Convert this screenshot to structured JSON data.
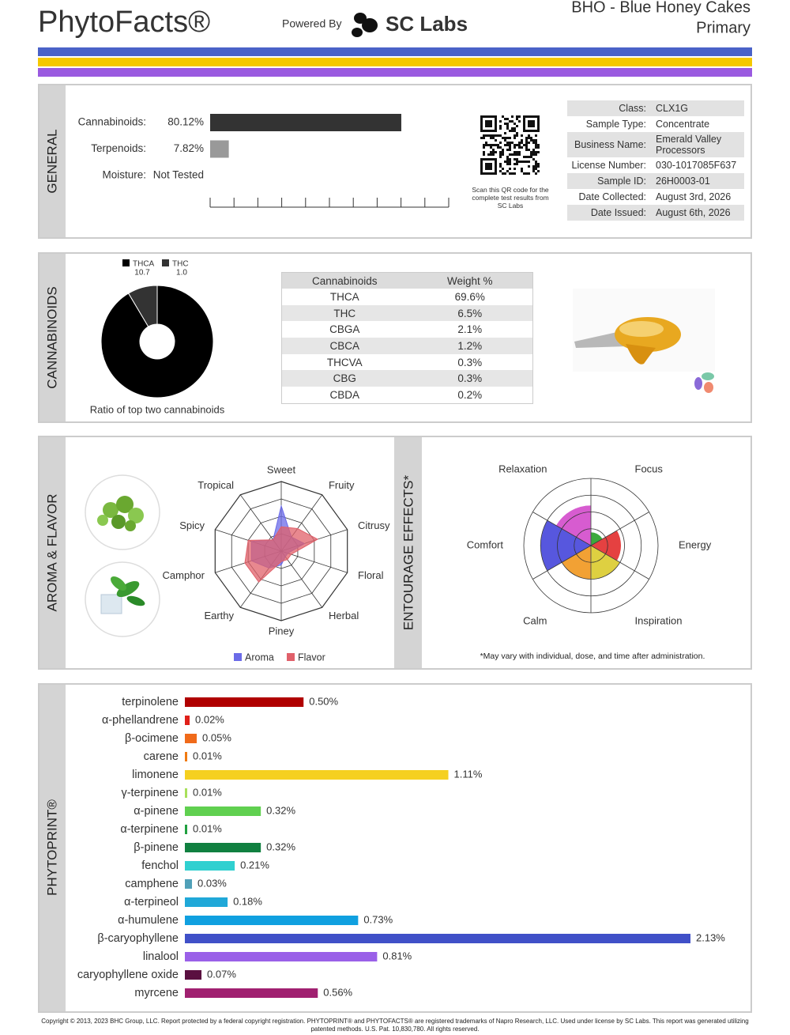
{
  "header": {
    "logo": "PhytoFacts®",
    "powered_by": "Powered By",
    "lab": "SC Labs",
    "product": "BHO - Blue Honey Cakes",
    "grade": "Primary"
  },
  "general": {
    "title": "GENERAL",
    "rows": [
      {
        "label": "Cannabinoids:",
        "value": 80.12,
        "value_label": "80.12%",
        "color": "#333333"
      },
      {
        "label": "Terpenoids:",
        "value": 7.82,
        "value_label": "7.82%",
        "color": "#999999"
      },
      {
        "label": "Moisture:",
        "value_label": "Not Tested"
      }
    ],
    "qr_note": "Scan this QR code for the complete test results from SC Labs",
    "info": [
      [
        "Class:",
        "CLX1G"
      ],
      [
        "Sample Type:",
        "Concentrate"
      ],
      [
        "Business Name:",
        "Emerald Valley Processors"
      ],
      [
        "License Number:",
        "030-1017085F637"
      ],
      [
        "Sample ID:",
        "26H0003-01"
      ],
      [
        "Date Collected:",
        "August 3rd, 2026"
      ],
      [
        "Date Issued:",
        "August 6th, 2026"
      ]
    ]
  },
  "cannabinoids": {
    "title": "CANNABINOIDS",
    "pie": {
      "type": "pie",
      "series": [
        {
          "name": "THCA",
          "value": 10.7,
          "value_label": "10.7",
          "color": "#000000"
        },
        {
          "name": "THC",
          "value": 1.0,
          "value_label": "1.0",
          "color": "#333333"
        }
      ],
      "caption": "Ratio of top two cannabinoids"
    },
    "table": {
      "columns": [
        "Cannabinoids",
        "Weight %"
      ],
      "rows": [
        {
          "name": "THCA",
          "value": 69.6,
          "value_label": "69.6%"
        },
        {
          "name": "THC",
          "value": 6.5,
          "value_label": "6.5%"
        },
        {
          "name": "CBGA",
          "value": 2.1,
          "value_label": "2.1%"
        },
        {
          "name": "CBCA",
          "value": 1.2,
          "value_label": "1.2%"
        },
        {
          "name": "THCVA",
          "value": 0.3,
          "value_label": "0.3%"
        },
        {
          "name": "CBG",
          "value": 0.3,
          "value_label": "0.3%"
        },
        {
          "name": "CBDA",
          "value": 0.2,
          "value_label": "0.2%"
        }
      ]
    }
  },
  "aroma": {
    "title": "AROMA & FLAVOR",
    "type": "radar",
    "axes": [
      "Sweet",
      "Fruity",
      "Citrusy",
      "Floral",
      "Herbal",
      "Piney",
      "Earthy",
      "Camphor",
      "Spicy",
      "Tropical"
    ],
    "rlim": [
      0,
      1
    ],
    "series": [
      {
        "name": "Aroma",
        "color": "#6b6be8",
        "values": [
          0.65,
          0.25,
          0.35,
          0.1,
          0.1,
          0.2,
          0.3,
          0.45,
          0.45,
          0.2
        ]
      },
      {
        "name": "Flavor",
        "color": "#e0606a",
        "values": [
          0.35,
          0.4,
          0.55,
          0.15,
          0.15,
          0.15,
          0.55,
          0.55,
          0.5,
          0.2
        ]
      }
    ]
  },
  "entourage": {
    "title": "ENTOURAGE EFFECTS*",
    "type": "polar-area",
    "rlim": [
      0,
      1
    ],
    "categories": [
      "Focus",
      "Energy",
      "Inspiration",
      "Calm",
      "Comfort",
      "Relaxation"
    ],
    "colors": [
      "#1a9a1a",
      "#e02020",
      "#d8c820",
      "#f09010",
      "#3a3ad8",
      "#d040c8"
    ],
    "values": [
      0.2,
      0.45,
      0.5,
      0.5,
      0.75,
      0.6
    ],
    "note": "*May vary with individual, dose, and time after administration."
  },
  "phytoprint": {
    "title": "PHYTOPRINT®",
    "terpenes": [
      {
        "name": "terpinolene",
        "color": "#b00000",
        "text_color": "#b00000",
        "value": 0.5,
        "value_label": "0.50%"
      },
      {
        "name": "α-phellandrene",
        "color": "#e0201a",
        "text_color": "#d01a14",
        "value": 0.02,
        "value_label": "0.02%"
      },
      {
        "name": "β-ocimene",
        "color": "#f06a1a",
        "text_color": "#e05a10",
        "value": 0.05,
        "value_label": "0.05%"
      },
      {
        "name": "carene",
        "color": "#f07a10",
        "text_color": "#e06a00",
        "value": 0.01,
        "value_label": "0.01%"
      },
      {
        "name": "limonene",
        "color": "#f5d020",
        "text_color": "#8a7000",
        "value": 1.11,
        "value_label": "1.11%"
      },
      {
        "name": "γ-terpinene",
        "color": "#a8e05a",
        "text_color": "#5a8a20",
        "value": 0.01,
        "value_label": "0.01%"
      },
      {
        "name": "α-pinene",
        "color": "#60d050",
        "text_color": "#30a030",
        "value": 0.32,
        "value_label": "0.32%"
      },
      {
        "name": "α-terpinene",
        "color": "#20a040",
        "text_color": "#1a8a30",
        "value": 0.01,
        "value_label": "0.01%"
      },
      {
        "name": "β-pinene",
        "color": "#108040",
        "text_color": "#108040",
        "value": 0.32,
        "value_label": "0.32%"
      },
      {
        "name": "fenchol",
        "color": "#30d0d0",
        "text_color": "#209898",
        "value": 0.21,
        "value_label": "0.21%"
      },
      {
        "name": "camphene",
        "color": "#50a0b8",
        "text_color": "#3a8aa0",
        "value": 0.03,
        "value_label": "0.03%"
      },
      {
        "name": "α-terpineol",
        "color": "#20a8d8",
        "text_color": "#1890c0",
        "value": 0.18,
        "value_label": "0.18%"
      },
      {
        "name": "α-humulene",
        "color": "#10a0e0",
        "text_color": "#1088c8",
        "value": 0.73,
        "value_label": "0.73%"
      },
      {
        "name": "β-caryophyllene",
        "color": "#4050c8",
        "text_color": "#4050c8",
        "value": 2.13,
        "value_label": "2.13%"
      },
      {
        "name": "linalool",
        "color": "#9a60e8",
        "text_color": "#8a50d8",
        "value": 0.81,
        "value_label": "0.81%"
      },
      {
        "name": "caryophyllene oxide",
        "color": "#5a1040",
        "text_color": "#5a1040",
        "value": 0.07,
        "value_label": "0.07%"
      },
      {
        "name": "myrcene",
        "color": "#a02070",
        "text_color": "#a02070",
        "value": 0.56,
        "value_label": "0.56%"
      }
    ]
  },
  "footer": "Copyright © 2013, 2023 BHC Group, LLC. Report protected by a federal copyright registration. PHYTOPRINT® and PHYTOFACTS® are registered trademarks of Napro Research, LLC. Used under license by SC Labs. This report was generated utilizing patented methods. U.S. Pat. 10,830,780. All rights reserved."
}
